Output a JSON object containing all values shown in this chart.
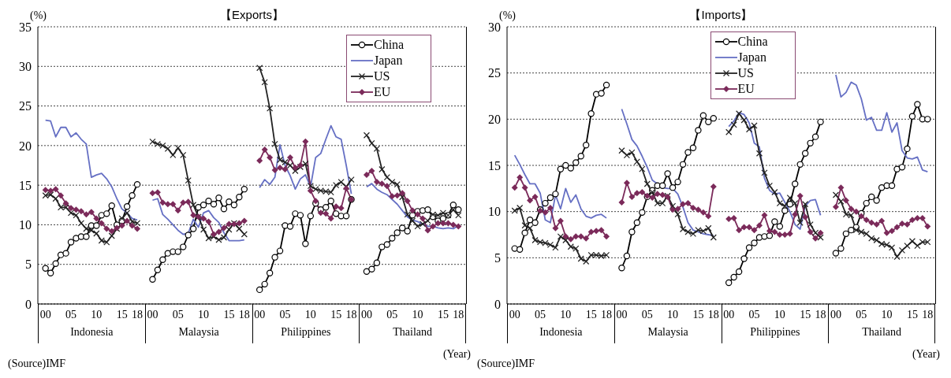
{
  "chart_data": [
    {
      "type": "line",
      "title": "【Exports】",
      "ylabel": "(%)",
      "xlabel": "(Year)",
      "ylim": [
        0,
        35
      ],
      "yticks": [
        0,
        5,
        10,
        15,
        20,
        25,
        30,
        35
      ],
      "grid": "y",
      "legend": "top right",
      "categories": [
        "00",
        null,
        null,
        null,
        null,
        "05",
        null,
        null,
        null,
        null,
        "10",
        null,
        null,
        null,
        null,
        "15",
        null,
        null,
        "18",
        null,
        null,
        "00",
        null,
        null,
        null,
        null,
        "05",
        null,
        null,
        null,
        null,
        "10",
        null,
        null,
        null,
        null,
        "15",
        null,
        null,
        "18",
        null,
        null,
        "00",
        null,
        null,
        null,
        null,
        "05",
        null,
        null,
        null,
        null,
        "10",
        null,
        null,
        null,
        null,
        "15",
        null,
        null,
        "18",
        null,
        null,
        "00",
        null,
        null,
        null,
        null,
        "05",
        null,
        null,
        null,
        null,
        "10",
        null,
        null,
        null,
        null,
        "15",
        null,
        null,
        "18"
      ],
      "annotations": [
        "Indonesia",
        "Malaysia",
        "Philippines",
        "Thailand",
        "(Source)IMF"
      ],
      "series": [
        {
          "name": "China",
          "color": "#000000",
          "marker": "circle",
          "values": [
            4.5,
            3.9,
            5.1,
            6.2,
            6.4,
            7.8,
            8.3,
            8.5,
            8.5,
            9.9,
            9.9,
            11.2,
            11.4,
            12.4,
            10.0,
            10.5,
            12.3,
            13.7,
            15.1,
            null,
            null,
            3.1,
            4.3,
            5.6,
            6.4,
            6.6,
            6.6,
            7.2,
            8.7,
            9.5,
            12.2,
            12.5,
            13.0,
            12.6,
            13.4,
            12.0,
            12.9,
            12.5,
            13.5,
            14.5,
            null,
            null,
            1.8,
            2.5,
            3.9,
            5.9,
            6.7,
            9.9,
            9.8,
            11.4,
            11.2,
            7.6,
            11.1,
            12.7,
            11.9,
            12.2,
            13.0,
            11.4,
            11.1,
            11.1,
            13.2,
            null,
            null,
            4.1,
            4.4,
            5.2,
            7.2,
            7.5,
            8.3,
            9.0,
            9.6,
            9.2,
            11.2,
            11.7,
            11.8,
            11.9,
            11.0,
            10.5,
            10.8,
            11.2,
            12.5,
            11.9
          ]
        },
        {
          "name": "Japan",
          "color": "#6670c4",
          "marker": "none",
          "values": [
            23.2,
            23.1,
            21.1,
            22.3,
            22.3,
            21.1,
            21.6,
            20.8,
            20.2,
            16.0,
            16.3,
            16.5,
            15.8,
            14.8,
            13.3,
            12.0,
            11.5,
            10.8,
            10.6,
            null,
            null,
            13.1,
            13.3,
            11.3,
            10.7,
            10.0,
            9.3,
            8.8,
            8.9,
            10.7,
            9.7,
            11.5,
            11.8,
            10.9,
            10.3,
            9.0,
            8.0,
            8.0,
            8.0,
            8.1,
            null,
            null,
            14.7,
            15.7,
            15.1,
            16.0,
            20.1,
            17.5,
            16.2,
            14.5,
            15.8,
            16.3,
            14.8,
            18.5,
            19.0,
            20.8,
            22.5,
            21.1,
            20.8,
            17.5,
            13.9,
            null,
            null,
            14.8,
            15.2,
            14.5,
            14.1,
            13.8,
            13.2,
            12.6,
            11.8,
            11.0,
            10.6,
            10.4,
            10.1,
            9.8,
            9.8,
            9.6,
            9.5,
            9.6,
            9.5,
            9.9
          ]
        },
        {
          "name": "US",
          "color": "#222222",
          "marker": "cross",
          "values": [
            13.7,
            13.8,
            13.3,
            12.2,
            12.2,
            11.5,
            11.2,
            10.2,
            9.5,
            9.3,
            8.9,
            8.0,
            7.8,
            8.6,
            9.5,
            10.8,
            11.5,
            10.4,
            10.2,
            null,
            null,
            20.5,
            20.2,
            20.0,
            19.6,
            18.8,
            19.7,
            18.8,
            15.6,
            12.5,
            11.0,
            9.4,
            8.3,
            8.5,
            8.1,
            8.4,
            9.4,
            10.2,
            9.5,
            8.8,
            null,
            null,
            29.8,
            28.0,
            24.7,
            20.2,
            18.2,
            17.9,
            17.5,
            16.8,
            17.3,
            17.7,
            14.9,
            14.5,
            14.3,
            14.2,
            14.1,
            15.0,
            15.4,
            14.8,
            15.7,
            null,
            null,
            21.3,
            20.3,
            19.6,
            17.0,
            16.0,
            15.4,
            15.1,
            13.5,
            11.3,
            10.5,
            9.8,
            10.1,
            10.5,
            11.3,
            11.2,
            11.5,
            11.2,
            11.9,
            11.2
          ]
        },
        {
          "name": "EU",
          "color": "#7b2a5a",
          "marker": "diamond",
          "values": [
            14.4,
            14.3,
            14.5,
            13.7,
            12.7,
            12.1,
            11.9,
            11.7,
            11.3,
            11.6,
            10.8,
            10.2,
            9.5,
            9.2,
            9.6,
            9.9,
            10.5,
            9.9,
            9.5,
            null,
            null,
            14.0,
            14.1,
            12.8,
            12.6,
            12.6,
            11.8,
            12.8,
            12.9,
            11.2,
            11.0,
            10.8,
            10.4,
            8.8,
            9.1,
            9.6,
            10.1,
            10.1,
            10.2,
            10.5,
            null,
            null,
            18.1,
            19.5,
            18.5,
            16.9,
            17.2,
            17.0,
            18.5,
            17.2,
            17.5,
            20.5,
            14.3,
            13.0,
            11.5,
            11.4,
            10.8,
            12.3,
            12.1,
            14.6,
            13.2,
            null,
            null,
            16.3,
            16.8,
            15.4,
            15.2,
            14.9,
            13.6,
            13.7,
            14.0,
            13.0,
            11.8,
            11.3,
            10.8,
            9.3,
            9.8,
            10.2,
            10.2,
            10.2,
            10.0,
            9.8
          ]
        }
      ]
    },
    {
      "type": "line",
      "title": "【Imports】",
      "ylabel": "(%)",
      "xlabel": "(Year)",
      "ylim": [
        0,
        30
      ],
      "yticks": [
        0,
        5,
        10,
        15,
        20,
        25,
        30
      ],
      "grid": "y",
      "legend": "top",
      "categories": [
        "00",
        null,
        null,
        null,
        null,
        "05",
        null,
        null,
        null,
        null,
        "10",
        null,
        null,
        null,
        null,
        "15",
        null,
        null,
        "18",
        null,
        null,
        "00",
        null,
        null,
        null,
        null,
        "05",
        null,
        null,
        null,
        null,
        "10",
        null,
        null,
        null,
        null,
        "15",
        null,
        null,
        "18",
        null,
        null,
        "00",
        null,
        null,
        null,
        null,
        "05",
        null,
        null,
        null,
        null,
        "10",
        null,
        null,
        null,
        null,
        "15",
        null,
        null,
        "18",
        null,
        null,
        "00",
        null,
        null,
        null,
        null,
        "05",
        null,
        null,
        null,
        null,
        "10",
        null,
        null,
        null,
        null,
        "15",
        null,
        null,
        "18"
      ],
      "annotations": [
        "Indonesia",
        "Malaysia",
        "Philippines",
        "Thailand",
        "(Source)IMF"
      ],
      "series": [
        {
          "name": "China",
          "color": "#000000",
          "marker": "circle",
          "values": [
            6.0,
            5.9,
            7.7,
            9.1,
            8.8,
            10.2,
            10.9,
            11.5,
            11.9,
            14.6,
            15.0,
            14.7,
            15.3,
            16.0,
            17.2,
            20.6,
            22.7,
            22.8,
            23.7,
            null,
            null,
            3.9,
            5.2,
            7.8,
            8.8,
            9.9,
            11.6,
            12.3,
            12.8,
            12.8,
            14.1,
            12.6,
            13.2,
            15.1,
            16.4,
            16.9,
            18.8,
            20.4,
            19.7,
            20.1,
            null,
            null,
            2.3,
            2.9,
            3.5,
            4.9,
            6.1,
            6.6,
            7.2,
            7.3,
            7.4,
            8.9,
            8.4,
            10.1,
            10.8,
            13.0,
            15.1,
            16.3,
            17.4,
            18.1,
            19.7,
            null,
            null,
            5.5,
            6.0,
            7.6,
            8.0,
            8.3,
            9.8,
            10.9,
            11.6,
            11.2,
            12.6,
            12.8,
            12.8,
            14.6,
            14.8,
            16.8,
            20.3,
            21.6,
            20.0,
            20.0
          ]
        },
        {
          "name": "Japan",
          "color": "#6670c4",
          "marker": "none",
          "values": [
            16.1,
            15.1,
            14.0,
            13.0,
            13.0,
            12.0,
            9.1,
            8.8,
            11.8,
            10.3,
            12.5,
            11.0,
            11.8,
            10.3,
            9.5,
            9.3,
            9.6,
            9.7,
            9.3,
            null,
            null,
            21.1,
            19.5,
            17.8,
            17.1,
            16.0,
            14.8,
            13.4,
            13.0,
            12.6,
            12.5,
            12.5,
            11.9,
            10.5,
            8.8,
            8.0,
            7.8,
            7.6,
            7.5,
            7.4,
            null,
            null,
            19.2,
            19.8,
            20.7,
            20.5,
            19.6,
            17.4,
            17.0,
            13.6,
            12.3,
            11.9,
            12.0,
            11.0,
            10.0,
            8.6,
            8.1,
            10.6,
            11.2,
            11.3,
            9.6,
            null,
            null,
            24.8,
            22.4,
            22.9,
            24.0,
            23.7,
            22.2,
            19.9,
            20.2,
            18.8,
            18.8,
            20.7,
            18.6,
            19.6,
            16.6,
            15.8,
            15.7,
            15.9,
            14.5,
            14.3
          ]
        },
        {
          "name": "US",
          "color": "#222222",
          "marker": "cross",
          "values": [
            10.1,
            10.4,
            8.5,
            8.2,
            6.9,
            6.7,
            6.6,
            6.4,
            6.1,
            7.3,
            6.9,
            6.2,
            6.0,
            4.9,
            4.6,
            5.3,
            5.3,
            5.2,
            5.3,
            null,
            null,
            16.6,
            16.1,
            16.4,
            15.4,
            14.6,
            13.0,
            12.1,
            10.9,
            10.9,
            11.7,
            10.6,
            9.7,
            8.1,
            7.8,
            7.6,
            8.0,
            7.9,
            8.2,
            7.2,
            null,
            null,
            18.6,
            19.4,
            20.6,
            19.9,
            18.9,
            19.3,
            16.3,
            14.2,
            12.8,
            12.1,
            10.9,
            10.6,
            11.5,
            10.9,
            8.8,
            10.8,
            8.6,
            7.7,
            7.2,
            null,
            null,
            11.8,
            11.1,
            9.7,
            9.6,
            8.0,
            7.8,
            7.6,
            7.1,
            6.9,
            6.5,
            6.4,
            6.1,
            5.1,
            5.8,
            6.3,
            6.8,
            6.3,
            6.7,
            6.7
          ]
        },
        {
          "name": "EU",
          "color": "#7b2a5a",
          "marker": "diamond",
          "values": [
            12.6,
            13.7,
            12.6,
            11.2,
            11.6,
            10.1,
            9.9,
            10.4,
            8.2,
            9.0,
            7.3,
            7.0,
            7.3,
            7.3,
            7.1,
            7.8,
            7.9,
            8.0,
            7.3,
            null,
            null,
            11.0,
            13.1,
            11.6,
            12.0,
            12.1,
            11.7,
            11.5,
            11.9,
            11.8,
            11.6,
            10.2,
            10.3,
            10.8,
            10.9,
            10.4,
            10.2,
            9.9,
            9.5,
            12.7,
            null,
            null,
            9.2,
            9.3,
            8.0,
            8.3,
            8.3,
            8.0,
            8.5,
            9.6,
            7.9,
            7.8,
            7.5,
            7.5,
            7.6,
            9.7,
            11.7,
            9.4,
            7.8,
            7.1,
            7.7,
            null,
            null,
            10.5,
            12.6,
            11.2,
            10.3,
            10.0,
            9.5,
            9.1,
            8.8,
            8.6,
            9.0,
            7.7,
            7.9,
            8.3,
            8.7,
            8.6,
            9.1,
            9.3,
            9.3,
            8.4
          ]
        }
      ]
    }
  ]
}
